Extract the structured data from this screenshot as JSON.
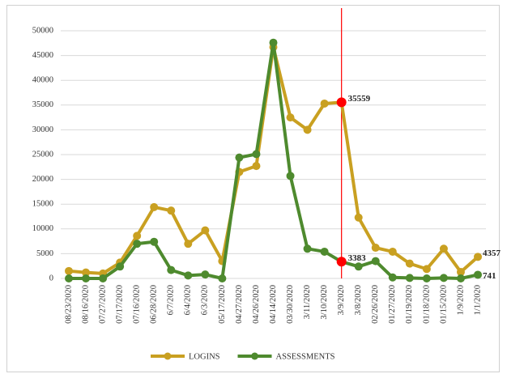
{
  "chart_data": {
    "type": "line",
    "categories": [
      "08/23/2020",
      "08/16/2020",
      "07/27/2020",
      "07/17/2020",
      "07/16/2020",
      "06/28/2020",
      "6/7/2020",
      "6/4/2020",
      "6/3/2020",
      "05/17/2020",
      "04/27/2020",
      "04/26/2020",
      "04/14/2020",
      "03/30/2020",
      "3/11/2020",
      "3/10/2020",
      "3/9/2020",
      "3/8/2020",
      "02/26/2020",
      "01/27/2020",
      "01/19/2020",
      "01/18/2020",
      "01/15/2020",
      "1/9/2020",
      "1/1/2020"
    ],
    "series": [
      {
        "name": "LOGINS",
        "color": "#c9a021",
        "values": [
          1500,
          1200,
          1000,
          3200,
          8600,
          14400,
          13700,
          7000,
          9700,
          3500,
          21500,
          22700,
          46700,
          32500,
          30000,
          35300,
          35559,
          12300,
          6200,
          5400,
          3000,
          1900,
          6000,
          1300,
          4357
        ]
      },
      {
        "name": "ASSESSMENTS",
        "color": "#4e8a2e",
        "values": [
          0,
          0,
          0,
          2400,
          7000,
          7400,
          1700,
          600,
          800,
          0,
          24400,
          25100,
          47600,
          20700,
          6000,
          5400,
          3383,
          2400,
          3500,
          200,
          100,
          0,
          100,
          0,
          741
        ]
      }
    ],
    "ylim": [
      0,
      50000
    ],
    "yticks": [
      0,
      5000,
      10000,
      15000,
      20000,
      25000,
      30000,
      35000,
      40000,
      45000,
      50000
    ],
    "grid": true,
    "legend": "bottom",
    "reference_line": {
      "x": "3/9/2020",
      "color": "#ff0000"
    }
  }
}
